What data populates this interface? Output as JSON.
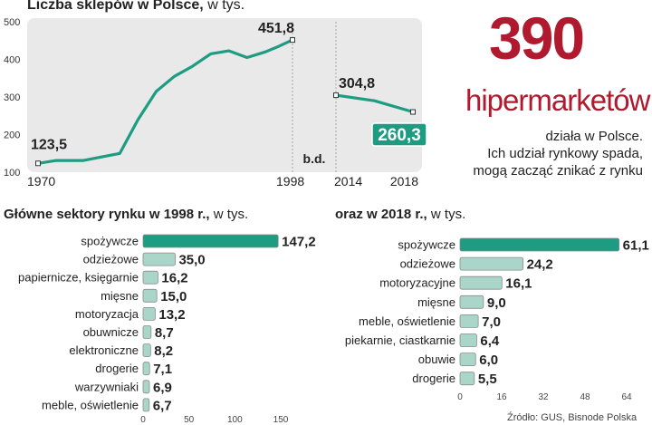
{
  "infographic": {
    "headline_number": "390",
    "headline_word": "hipermarketów",
    "description": [
      "działa w Polsce.",
      "Ich udział rynkowy spada,",
      "mogą zacząć znikać z rynku"
    ],
    "source": "Źródło: GUS, Bisnode Polska",
    "colors": {
      "accent": "#b0192e",
      "teal": "#1e9c82",
      "light_teal": "#a9d6c9",
      "panel": "#e9e9e9"
    }
  },
  "chart_data": [
    {
      "type": "line",
      "title": "Liczba sklepów w Polsce,",
      "title_unit": "w tys.",
      "ylim": [
        100,
        500
      ],
      "yticks": [
        100,
        200,
        300,
        400,
        500
      ],
      "xticks": [
        "1970",
        "1998",
        "2014",
        "2018"
      ],
      "gap_label": "b.d.",
      "series": [
        {
          "segment": "1970-1998",
          "x": [
            1970,
            1972,
            1975,
            1979,
            1981,
            1983,
            1985,
            1987,
            1989,
            1991,
            1993,
            1995,
            1996.5,
            1998
          ],
          "y": [
            123.5,
            131,
            131,
            150,
            240,
            315,
            355,
            382,
            415,
            423,
            405,
            420,
            435,
            451.8
          ]
        },
        {
          "segment": "2014-2018",
          "x": [
            2014,
            2016,
            2018
          ],
          "y": [
            304.8,
            290,
            260.3
          ]
        }
      ],
      "data_labels": [
        {
          "x": 1970,
          "y": 123.5,
          "text": "123,5"
        },
        {
          "x": 1998,
          "y": 451.8,
          "text": "451,8"
        },
        {
          "x": 2014,
          "y": 304.8,
          "text": "304,8"
        },
        {
          "x": 2018,
          "y": 260.3,
          "text": "260,3",
          "highlight": true
        }
      ]
    },
    {
      "type": "bar",
      "title": "Główne sektory rynku w 1998 r.,",
      "title_unit": "w tys.",
      "xlim": [
        0,
        150
      ],
      "xticks": [
        0,
        50,
        100,
        150
      ],
      "categories": [
        "spożywcze",
        "odzieżowe",
        "papiernicze, księgarnie",
        "mięsne",
        "motoryzacja",
        "obuwnicze",
        "elektroniczne",
        "drogerie",
        "warzywniaki",
        "meble, oświetlenie"
      ],
      "values": [
        147.2,
        35.0,
        16.2,
        15.0,
        13.2,
        8.7,
        8.2,
        7.1,
        6.9,
        6.7
      ],
      "labels": [
        "147,2",
        "35,0",
        "16,2",
        "15,0",
        "13,2",
        "8,7",
        "8,2",
        "7,1",
        "6,9",
        "6,7"
      ]
    },
    {
      "type": "bar",
      "title": "oraz w 2018 r.,",
      "title_unit": "w tys.",
      "xlim": [
        0,
        64
      ],
      "xticks": [
        0,
        16,
        32,
        48,
        64
      ],
      "categories": [
        "spożywcze",
        "odzieżowe",
        "motoryzacyjne",
        "mięsne",
        "meble, oświetlenie",
        "piekarnie, ciastkarnie",
        "obuwie",
        "drogerie"
      ],
      "values": [
        61.1,
        24.2,
        16.1,
        9.0,
        7.0,
        6.4,
        6.0,
        5.5
      ],
      "labels": [
        "61,1",
        "24,2",
        "16,1",
        "9,0",
        "7,0",
        "6,4",
        "6,0",
        "5,5"
      ]
    }
  ]
}
